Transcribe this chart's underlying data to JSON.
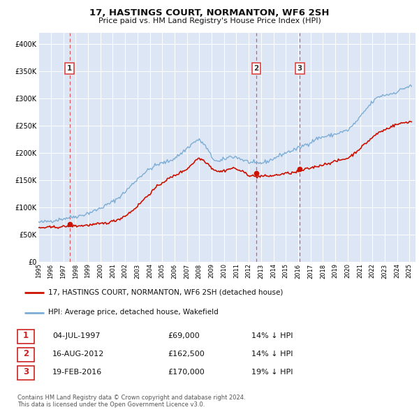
{
  "title": "17, HASTINGS COURT, NORMANTON, WF6 2SH",
  "subtitle": "Price paid vs. HM Land Registry's House Price Index (HPI)",
  "plot_bg_color": "#dce6f5",
  "grid_color": "#ffffff",
  "sale_dates_num": [
    1997.503,
    2012.621,
    2016.132
  ],
  "sale_prices": [
    69000,
    162500,
    170000
  ],
  "sale_labels": [
    "1",
    "2",
    "3"
  ],
  "sale_date_strs": [
    "04-JUL-1997",
    "16-AUG-2012",
    "19-FEB-2016"
  ],
  "sale_price_strs": [
    "£69,000",
    "£162,500",
    "£170,000"
  ],
  "sale_pct_strs": [
    "14% ↓ HPI",
    "14% ↓ HPI",
    "19% ↓ HPI"
  ],
  "vline_color": "#dd4444",
  "red_line_color": "#cc1100",
  "blue_line_color": "#7dadd4",
  "marker_color": "#cc1100",
  "ylim": [
    0,
    420000
  ],
  "xlim_start": 1995.0,
  "xlim_end": 2025.5,
  "yticks": [
    0,
    50000,
    100000,
    150000,
    200000,
    250000,
    300000,
    350000,
    400000
  ],
  "ytick_labels": [
    "£0",
    "£50K",
    "£100K",
    "£150K",
    "£200K",
    "£250K",
    "£300K",
    "£350K",
    "£400K"
  ],
  "xticks": [
    1995,
    1996,
    1997,
    1998,
    1999,
    2000,
    2001,
    2002,
    2003,
    2004,
    2005,
    2006,
    2007,
    2008,
    2009,
    2010,
    2011,
    2012,
    2013,
    2014,
    2015,
    2016,
    2017,
    2018,
    2019,
    2020,
    2021,
    2022,
    2023,
    2024,
    2025
  ],
  "legend_label_red": "17, HASTINGS COURT, NORMANTON, WF6 2SH (detached house)",
  "legend_label_blue": "HPI: Average price, detached house, Wakefield",
  "footer_text": "Contains HM Land Registry data © Crown copyright and database right 2024.\nThis data is licensed under the Open Government Licence v3.0."
}
